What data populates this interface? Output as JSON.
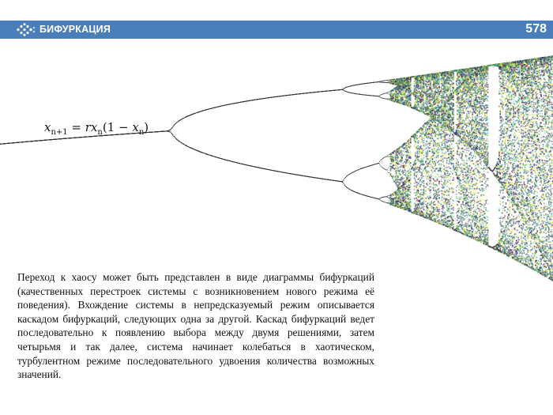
{
  "header": {
    "title": "БИФУРКАЦИЯ",
    "page_number": "578",
    "logo_icon": "dots-arrow-logo-icon",
    "bg_color": "#4a7ebb"
  },
  "formula": {
    "lhs_var": "x",
    "lhs_sub": "n+1",
    "eq": " = ",
    "r": "r",
    "x1": "x",
    "sub1": "n",
    "open": "(1 − ",
    "x2": "x",
    "sub2": "n",
    "close": ")"
  },
  "paragraph": "Переход к хаосу может быть представлен в виде диаграммы бифуркаций (качественных перестроек системы с возникновением нового режима её поведения). Вхождение системы в непредсказуемый режим описывается каскадом бифуркаций, следующих одна за другой. Каскад бифуркаций ведет последовательно к появлению выбора между двумя решениями, затем четырьмя и так далее, система начинает колебаться в хаотическом, турбулентном режиме последовательного удвоения количества возможных значений.",
  "diagram": {
    "type": "bifurcation",
    "equation": "logistic map",
    "colors": [
      "#440154",
      "#3b528b",
      "#21918c",
      "#5ec962",
      "#fde725"
    ]
  }
}
